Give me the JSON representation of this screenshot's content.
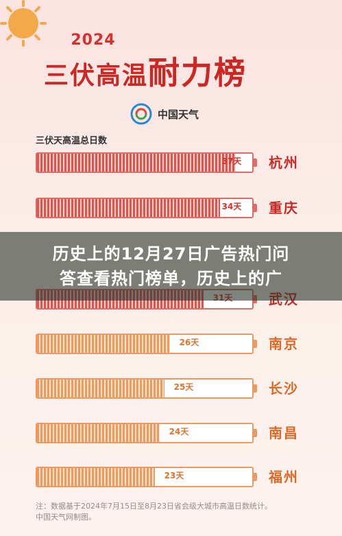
{
  "header": {
    "year": "2024",
    "title_part1": "三伏高温",
    "title_part2": "耐力榜",
    "brand": "中国天气"
  },
  "section_label": "三伏天高温总日数",
  "rows": [
    {
      "city": "杭州",
      "value": "37天",
      "days": 37,
      "style": "red"
    },
    {
      "city": "重庆",
      "value": "34天",
      "days": 34,
      "style": "red"
    },
    {
      "city": "武汉",
      "value": "31天",
      "days": 31,
      "style": "red"
    },
    {
      "city": "南京",
      "value": "26天",
      "days": 26,
      "style": "orange"
    },
    {
      "city": "长沙",
      "value": "25天",
      "days": 25,
      "style": "orange"
    },
    {
      "city": "南昌",
      "value": "24天",
      "days": 24,
      "style": "orange"
    },
    {
      "city": "福州",
      "value": "23天",
      "days": 23,
      "style": "orange"
    }
  ],
  "overlay": {
    "line1": "历史上的12月27日广告热门问",
    "line2": "答查看热门榜单，历史上的广"
  },
  "footnote": {
    "line1": "注：数据基于2024年7月15日至8月23日省会级大城市高温日数统计。",
    "line2": "中国天气网制图。"
  },
  "colors": {
    "red": "#d8302a",
    "orange": "#e0722e"
  },
  "icons": {
    "sun": "sun-icon",
    "logo": "china-weather-logo-icon"
  }
}
